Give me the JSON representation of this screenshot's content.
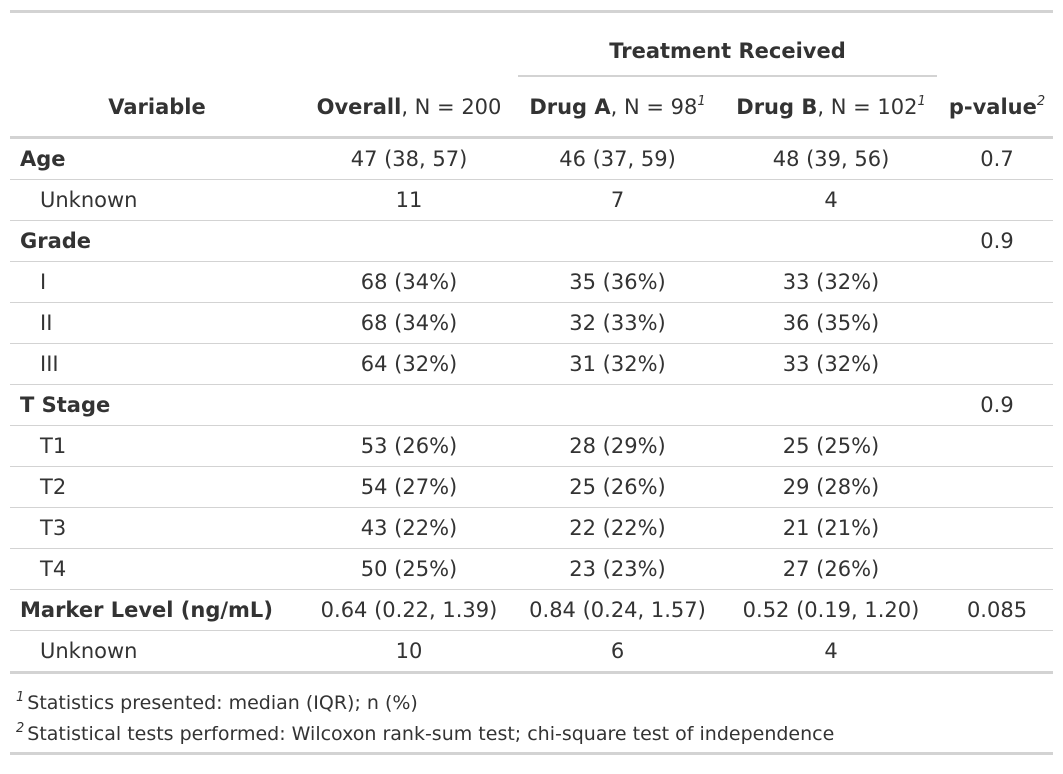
{
  "header": {
    "spanner_label": "Treatment Received",
    "columns": [
      {
        "bold": "Variable",
        "rest": "",
        "mark": ""
      },
      {
        "bold": "Overall",
        "rest": ", N = 200",
        "mark": ""
      },
      {
        "bold": "Drug A",
        "rest": ", N = 98",
        "mark": "1"
      },
      {
        "bold": "Drug B",
        "rest": ", N = 102",
        "mark": "1"
      },
      {
        "bold": "p-value",
        "rest": "",
        "mark": "2"
      }
    ]
  },
  "rows": [
    {
      "label": "Age",
      "overall": "47 (38, 57)",
      "drug_a": "46 (37, 59)",
      "drug_b": "48 (39, 56)",
      "p_value": "0.7"
    },
    {
      "label": "Unknown",
      "overall": "11",
      "drug_a": "7",
      "drug_b": "4",
      "p_value": ""
    },
    {
      "label": "Grade",
      "overall": "",
      "drug_a": "",
      "drug_b": "",
      "p_value": "0.9"
    },
    {
      "label": "I",
      "overall": "68 (34%)",
      "drug_a": "35 (36%)",
      "drug_b": "33 (32%)",
      "p_value": ""
    },
    {
      "label": "II",
      "overall": "68 (34%)",
      "drug_a": "32 (33%)",
      "drug_b": "36 (35%)",
      "p_value": ""
    },
    {
      "label": "III",
      "overall": "64 (32%)",
      "drug_a": "31 (32%)",
      "drug_b": "33 (32%)",
      "p_value": ""
    },
    {
      "label": "T Stage",
      "overall": "",
      "drug_a": "",
      "drug_b": "",
      "p_value": "0.9"
    },
    {
      "label": "T1",
      "overall": "53 (26%)",
      "drug_a": "28 (29%)",
      "drug_b": "25 (25%)",
      "p_value": ""
    },
    {
      "label": "T2",
      "overall": "54 (27%)",
      "drug_a": "25 (26%)",
      "drug_b": "29 (28%)",
      "p_value": ""
    },
    {
      "label": "T3",
      "overall": "43 (22%)",
      "drug_a": "22 (22%)",
      "drug_b": "21 (21%)",
      "p_value": ""
    },
    {
      "label": "T4",
      "overall": "50 (25%)",
      "drug_a": "23 (23%)",
      "drug_b": "27 (26%)",
      "p_value": ""
    },
    {
      "label": "Marker Level (ng/mL)",
      "overall": "0.64 (0.22, 1.39)",
      "drug_a": "0.84 (0.24, 1.57)",
      "drug_b": "0.52 (0.19, 1.20)",
      "p_value": "0.085"
    },
    {
      "label": "Unknown",
      "overall": "10",
      "drug_a": "6",
      "drug_b": "4",
      "p_value": ""
    }
  ],
  "footnotes": [
    {
      "mark": "1",
      "text": "Statistics presented: median (IQR); n (%)"
    },
    {
      "mark": "2",
      "text": "Statistical tests performed: Wilcoxon rank-sum test; chi-square test of independence"
    }
  ]
}
